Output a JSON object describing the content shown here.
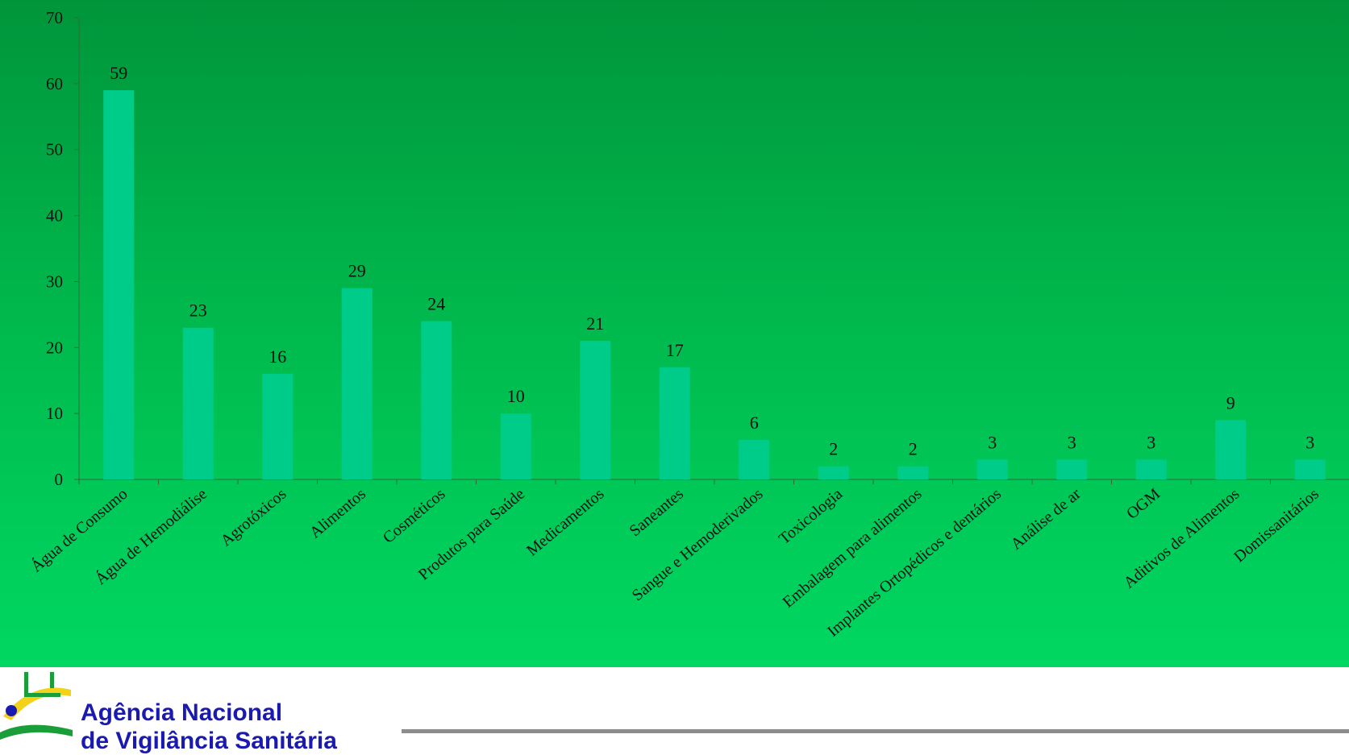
{
  "colors": {
    "background_top": "#00953a",
    "background_bottom": "#00d862",
    "bar": "#00cc8a",
    "agency_text": "#1a1ab0",
    "axis": "#2f6b3a"
  },
  "footer": {
    "agency_line_1": "Agência Nacional",
    "agency_line_2": "de Vigilância Sanitária",
    "logo_icon": "anvisa-logo-icon"
  },
  "chart_data": {
    "type": "bar",
    "title": "",
    "xlabel": "",
    "ylabel": "",
    "ylim": [
      0,
      70
    ],
    "yticks": [
      0,
      10,
      20,
      30,
      40,
      50,
      60,
      70
    ],
    "grid": false,
    "legend": "none",
    "categories": [
      "Água de Consumo",
      "Água de Hemodiálise",
      "Agrotóxicos",
      "Alimentos",
      "Cosméticos",
      "Produtos para Saúde",
      "Medicamentos",
      "Saneantes",
      "Sangue e Hemoderivados",
      "Toxicologia",
      "Embalagem para alimentos",
      "Implantes Ortopédicos e dentários",
      "Análise de ar",
      "OGM",
      "Aditivos de Alimentos",
      "Domissanitários"
    ],
    "values": [
      59,
      23,
      16,
      29,
      24,
      10,
      21,
      17,
      6,
      2,
      2,
      3,
      3,
      3,
      9,
      3
    ],
    "data_labels": [
      "59",
      "23",
      "16",
      "29",
      "24",
      "10",
      "21",
      "17",
      "6",
      "2",
      "2",
      "3",
      "3",
      "3",
      "9",
      "3"
    ]
  }
}
